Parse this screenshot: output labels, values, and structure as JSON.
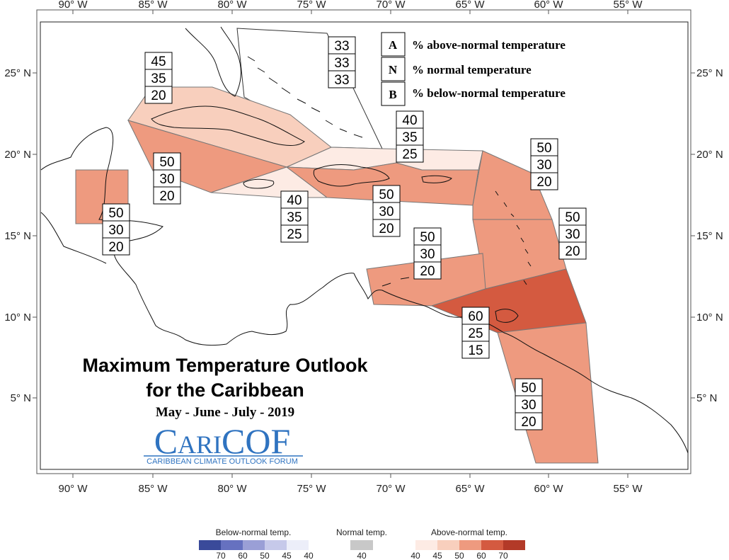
{
  "map": {
    "longitude_ticks": [
      "90° W",
      "85° W",
      "80° W",
      "75° W",
      "70° W",
      "65° W",
      "60° W",
      "55° W"
    ],
    "latitude_ticks": [
      "25° N",
      "20° N",
      "15° N",
      "10° N",
      "5° N"
    ]
  },
  "legend": {
    "items": [
      {
        "key": "A",
        "text": "% above-normal temperature"
      },
      {
        "key": "N",
        "text": "% normal temperature"
      },
      {
        "key": "B",
        "text": "% below-normal temperature"
      }
    ]
  },
  "title": {
    "line1": "Maximum Temperature Outlook",
    "line2": "for the Caribbean",
    "period": "May - June - July - 2019"
  },
  "logo": {
    "name": "CARICOF",
    "name_part1": "C",
    "name_part2": "ARI",
    "name_part3": "COF",
    "subtitle": "CARIBBEAN CLIMATE OUTLOOK FORUM"
  },
  "regions": [
    {
      "id": "bahamas",
      "above": "33",
      "normal": "33",
      "below": "33",
      "color": "none"
    },
    {
      "id": "cuba",
      "above": "45",
      "normal": "35",
      "below": "20",
      "color": "#f8cfbd"
    },
    {
      "id": "western-caribbean",
      "above": "50",
      "normal": "30",
      "below": "20",
      "color": "#ee9a7f"
    },
    {
      "id": "belize",
      "above": "50",
      "normal": "30",
      "below": "20",
      "color": "#ee9a7f"
    },
    {
      "id": "jamaica",
      "above": "40",
      "normal": "35",
      "below": "25",
      "color": "#fdebe4"
    },
    {
      "id": "turks-caicos",
      "above": "40",
      "normal": "35",
      "below": "25",
      "color": "#fdebe4"
    },
    {
      "id": "hispaniola-pr",
      "above": "50",
      "normal": "30",
      "below": "20",
      "color": "#ee9a7f"
    },
    {
      "id": "northern-lesser-antilles",
      "above": "50",
      "normal": "30",
      "below": "20",
      "color": "#ee9a7f"
    },
    {
      "id": "windward-islands",
      "above": "50",
      "normal": "30",
      "below": "20",
      "color": "#ee9a7f"
    },
    {
      "id": "abc-islands",
      "above": "50",
      "normal": "30",
      "below": "20",
      "color": "#ee9a7f"
    },
    {
      "id": "trinidad-tobago",
      "above": "60",
      "normal": "25",
      "below": "15",
      "color": "#d45a40"
    },
    {
      "id": "guianas",
      "above": "50",
      "normal": "30",
      "below": "20",
      "color": "#ee9a7f"
    }
  ],
  "color_scale": {
    "below": {
      "label": "Below-normal temp.",
      "ticks": [
        "70",
        "60",
        "50",
        "45",
        "40"
      ],
      "colors": [
        "#3a4a9a",
        "#6671c0",
        "#9a9fd6",
        "#c6c9ea",
        "#eceef9"
      ]
    },
    "normal": {
      "label": "Normal temp.",
      "ticks": [
        "40"
      ],
      "colors": [
        "#c8c8c8"
      ]
    },
    "above": {
      "label": "Above-normal temp.",
      "ticks": [
        "40",
        "45",
        "50",
        "60",
        "70"
      ],
      "colors": [
        "#fdebe4",
        "#f8cfbd",
        "#ee9a7f",
        "#d45a40",
        "#b33a28"
      ]
    }
  }
}
